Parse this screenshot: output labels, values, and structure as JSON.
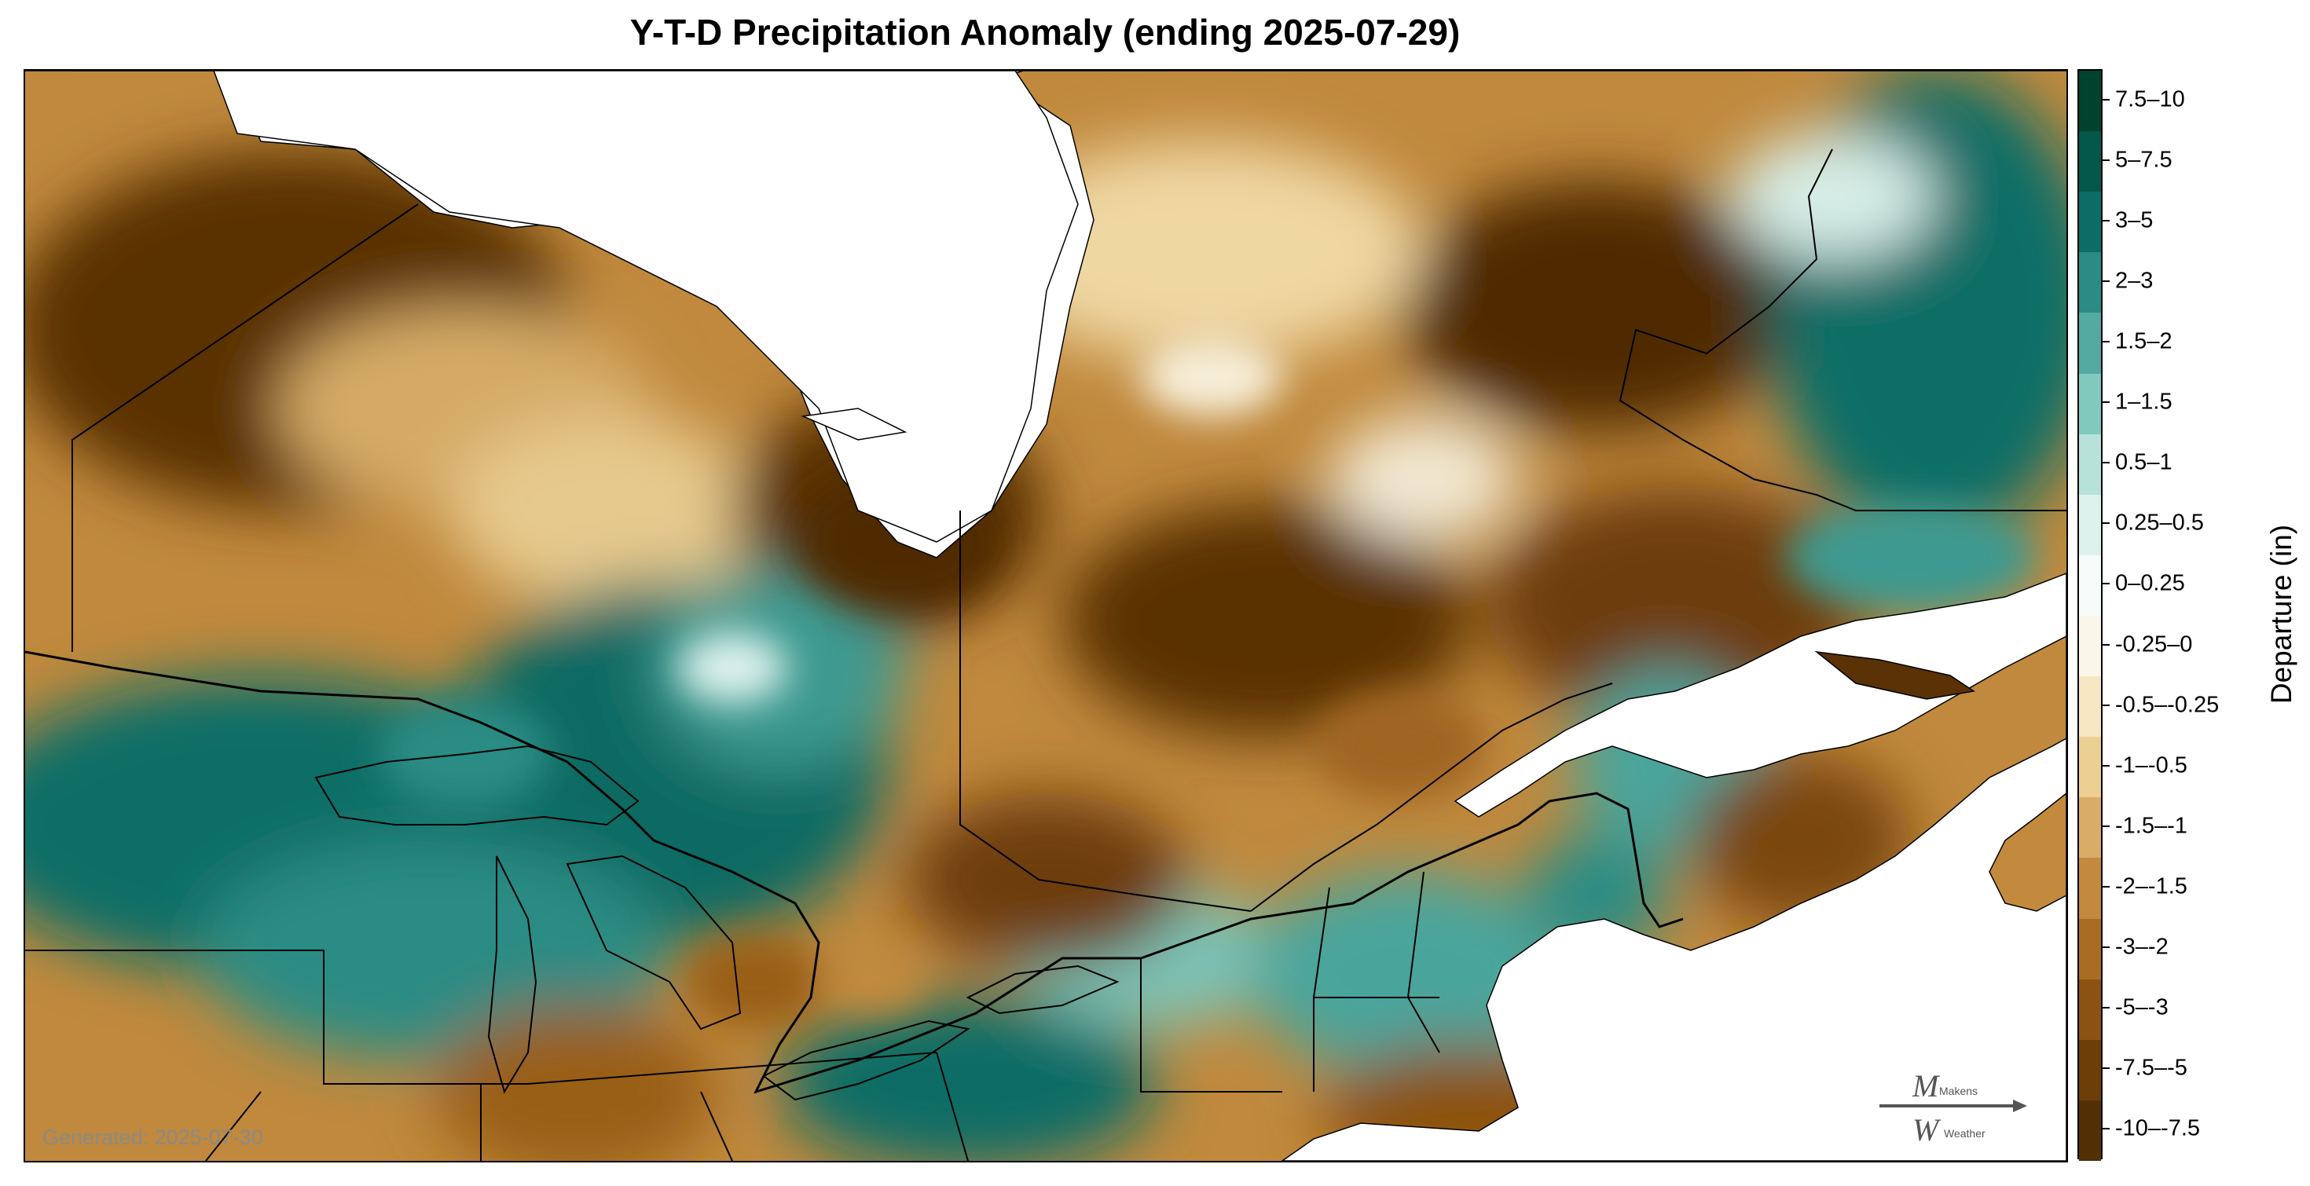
{
  "title": "Y-T-D Precipitation Anomaly (ending 2025-07-29)",
  "generated_label": "Generated: 2025-07-30",
  "logo": {
    "line1": "Makens",
    "line2": "Weather"
  },
  "legend": {
    "title": "Departure (in)",
    "bins": [
      {
        "label": "7.5–10",
        "color": "#01422f"
      },
      {
        "label": "5–7.5",
        "color": "#03584a"
      },
      {
        "label": "3–5",
        "color": "#0b6d66"
      },
      {
        "label": "2–3",
        "color": "#2a8c84"
      },
      {
        "label": "1.5–2",
        "color": "#52aaa0"
      },
      {
        "label": "1–1.5",
        "color": "#82c9bd"
      },
      {
        "label": "0.5–1",
        "color": "#b7e2da"
      },
      {
        "label": "0.25–0.5",
        "color": "#def2ed"
      },
      {
        "label": "0–0.25",
        "color": "#f6faf8"
      },
      {
        "label": "-0.25–0",
        "color": "#faf6ea"
      },
      {
        "label": "-0.5–-0.25",
        "color": "#f6e7c2"
      },
      {
        "label": "-1–-0.5",
        "color": "#eccf93"
      },
      {
        "label": "-1.5–-1",
        "color": "#d9ad66"
      },
      {
        "label": "-2–-1.5",
        "color": "#c38a3e"
      },
      {
        "label": "-3–-2",
        "color": "#aa6c22"
      },
      {
        "label": "-5–-3",
        "color": "#8c5211"
      },
      {
        "label": "-7.5–-5",
        "color": "#6e3e08"
      },
      {
        "label": "-10–-7.5",
        "color": "#532f05"
      }
    ]
  }
}
